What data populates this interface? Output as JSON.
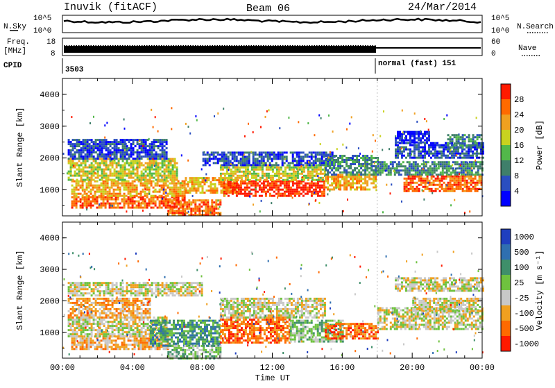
{
  "header": {
    "station": "Inuvik (fitACF)",
    "beam": "Beam 06",
    "date": "24/Mar/2014"
  },
  "top_panels": {
    "nsky_label": "N.Sky",
    "nsky_ticks": [
      "10^5",
      "10^0"
    ],
    "nsearch_label": "N.Search",
    "nsearch_ticks": [
      "10^5",
      "10^0"
    ],
    "freq_label": "Freq.",
    "freq_unit": "[MHz]",
    "freq_ticks": [
      "18",
      "8"
    ],
    "nave_label": "Nave",
    "nave_ticks": [
      "60",
      "0"
    ],
    "cpid_label": "CPID",
    "cpid_values": [
      "3503",
      "normal (fast) 151"
    ],
    "cpid_switch_time_h": 18.0
  },
  "colorbars": {
    "power": {
      "label": "Power [dB]",
      "ticks": [
        "28",
        "24",
        "20",
        "16",
        "12",
        "8",
        "4"
      ],
      "colors": [
        "#0000ff",
        "#2a4ec0",
        "#3f7f6a",
        "#52b84a",
        "#c9d21f",
        "#f0a020",
        "#ff6a00",
        "#ff1a00"
      ]
    },
    "velocity": {
      "label": "Velocity [m s⁻¹]",
      "ticks": [
        "1000",
        "500",
        "100",
        "25",
        "-25",
        "-100",
        "-500",
        "-1000"
      ],
      "colors": [
        "#1f3fbf",
        "#2f6fb0",
        "#3f8f6a",
        "#6fc23f",
        "#c8c8c8",
        "#f0a020",
        "#ff6a00",
        "#ff1a00"
      ]
    }
  },
  "chart_data": [
    {
      "type": "heatmap",
      "title": "Power",
      "xlabel": "Time UT",
      "ylabel": "Slant Range [km]",
      "xlim_hours": [
        0,
        24
      ],
      "ylim_km": [
        180,
        4500
      ],
      "x_ticks": [
        "00:00",
        "04:00",
        "08:00",
        "12:00",
        "16:00",
        "20:00",
        "00:00"
      ],
      "y_ticks": [
        "1000",
        "2000",
        "3000",
        "4000"
      ],
      "bands": [
        {
          "t0": 0.5,
          "t1": 7,
          "r0": 450,
          "r1": 800,
          "level": 6
        },
        {
          "t0": 0.5,
          "t1": 7,
          "r0": 800,
          "r1": 1300,
          "level": 5
        },
        {
          "t0": 0.3,
          "t1": 6.5,
          "r0": 1300,
          "r1": 2000,
          "level": 4
        },
        {
          "t0": 0.3,
          "t1": 6,
          "r0": 2000,
          "r1": 2600,
          "level": 1
        },
        {
          "t0": 6,
          "t1": 9,
          "r0": 200,
          "r1": 700,
          "level": 6
        },
        {
          "t0": 7,
          "t1": 10,
          "r0": 900,
          "r1": 1400,
          "level": 5
        },
        {
          "t0": 9.2,
          "t1": 15,
          "r0": 800,
          "r1": 1300,
          "level": 7
        },
        {
          "t0": 9,
          "t1": 15,
          "r0": 1300,
          "r1": 1800,
          "level": 4
        },
        {
          "t0": 8,
          "t1": 15.5,
          "r0": 1800,
          "r1": 2200,
          "level": 1
        },
        {
          "t0": 15,
          "t1": 17.9,
          "r0": 1000,
          "r1": 1500,
          "level": 5
        },
        {
          "t0": 15,
          "t1": 18,
          "r0": 1500,
          "r1": 2100,
          "level": 2
        },
        {
          "t0": 18,
          "t1": 24,
          "r0": 1500,
          "r1": 1900,
          "level": 2
        },
        {
          "t0": 19.5,
          "t1": 24,
          "r0": 950,
          "r1": 1450,
          "level": 6
        },
        {
          "t0": 19,
          "t1": 24,
          "r0": 2000,
          "r1": 2500,
          "level": 1
        },
        {
          "t0": 19,
          "t1": 21,
          "r0": 2500,
          "r1": 2850,
          "level": 0
        },
        {
          "t0": 22,
          "t1": 24,
          "r0": 2350,
          "r1": 2750,
          "level": 2
        }
      ]
    },
    {
      "type": "heatmap",
      "title": "Velocity",
      "xlabel": "Time UT",
      "ylabel": "Slant Range [km]",
      "xlim_hours": [
        0,
        24
      ],
      "ylim_km": [
        180,
        4500
      ],
      "x_ticks": [
        "00:00",
        "04:00",
        "08:00",
        "12:00",
        "16:00",
        "20:00",
        "00:00"
      ],
      "y_ticks": [
        "1000",
        "2000",
        "3000",
        "4000"
      ],
      "bands": [
        {
          "t0": 0.5,
          "t1": 6,
          "r0": 450,
          "r1": 900,
          "level": 5
        },
        {
          "t0": 0.3,
          "t1": 6,
          "r0": 900,
          "r1": 1500,
          "level": 4
        },
        {
          "t0": 0.3,
          "t1": 5,
          "r0": 1500,
          "r1": 2100,
          "level": 5
        },
        {
          "t0": 0.3,
          "t1": 8,
          "r0": 2200,
          "r1": 2600,
          "level": 4
        },
        {
          "t0": 5,
          "t1": 9,
          "r0": 600,
          "r1": 1400,
          "level": 2
        },
        {
          "t0": 6,
          "t1": 9,
          "r0": 200,
          "r1": 600,
          "level": 3
        },
        {
          "t0": 9,
          "t1": 13,
          "r0": 700,
          "r1": 1500,
          "level": 6
        },
        {
          "t0": 9,
          "t1": 15,
          "r0": 1500,
          "r1": 2100,
          "level": 4
        },
        {
          "t0": 13,
          "t1": 16,
          "r0": 700,
          "r1": 1400,
          "level": 3
        },
        {
          "t0": 15,
          "t1": 18,
          "r0": 800,
          "r1": 1300,
          "level": 6
        },
        {
          "t0": 18,
          "t1": 24,
          "r0": 1100,
          "r1": 1800,
          "level": 4
        },
        {
          "t0": 19,
          "t1": 24,
          "r0": 2300,
          "r1": 2750,
          "level": 4
        },
        {
          "t0": 20,
          "t1": 24,
          "r0": 1700,
          "r1": 2100,
          "level": 4
        }
      ]
    }
  ]
}
